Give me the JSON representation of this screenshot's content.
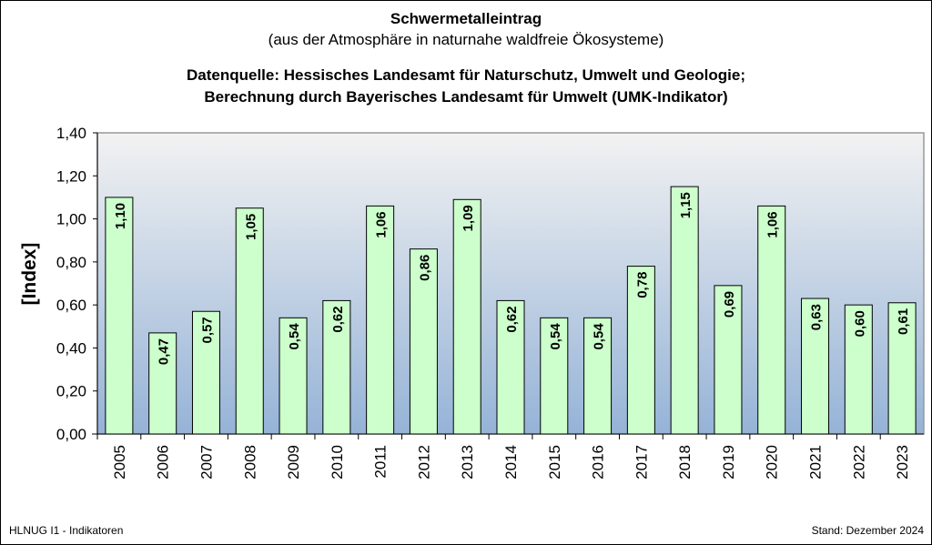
{
  "chart_data": {
    "type": "bar",
    "title": "Schwermetalleintrag",
    "subtitle": "(aus der Atmosphäre in naturnahe waldfreie Ökosysteme)",
    "source_line1": "Datenquelle: Hessisches Landesamt für Naturschutz, Umwelt und Geologie;",
    "source_line2": "Berechnung durch Bayerisches Landesamt für Umwelt (UMK-Indikator)",
    "ylabel": "[Index]",
    "xlabel": "",
    "ylim": [
      0,
      1.4
    ],
    "yticks": [
      "0,00",
      "0,20",
      "0,40",
      "0,60",
      "0,80",
      "1,00",
      "1,20",
      "1,40"
    ],
    "categories": [
      "2005",
      "2006",
      "2007",
      "2008",
      "2009",
      "2010",
      "2011",
      "2012",
      "2013",
      "2014",
      "2015",
      "2016",
      "2017",
      "2018",
      "2019",
      "2020",
      "2021",
      "2022",
      "2023"
    ],
    "values": [
      1.1,
      0.47,
      0.57,
      1.05,
      0.54,
      0.62,
      1.06,
      0.86,
      1.09,
      0.62,
      0.54,
      0.54,
      0.78,
      1.15,
      0.69,
      1.06,
      0.63,
      0.6,
      0.61
    ],
    "data_labels": [
      "1,10",
      "0,47",
      "0,57",
      "1,05",
      "0,54",
      "0,62",
      "1,06",
      "0,86",
      "1,09",
      "0,62",
      "0,54",
      "0,54",
      "0,78",
      "1,15",
      "0,69",
      "1,06",
      "0,63",
      "0,60",
      "0,61"
    ],
    "grid": false,
    "legend": "none",
    "colors": {
      "bar": "#ccffcc",
      "plot_top": "#f2f2f2",
      "plot_bottom": "#95b3d7"
    }
  },
  "footer": {
    "left": "HLNUG I1 - Indikatoren",
    "right": "Stand: Dezember 2024"
  }
}
